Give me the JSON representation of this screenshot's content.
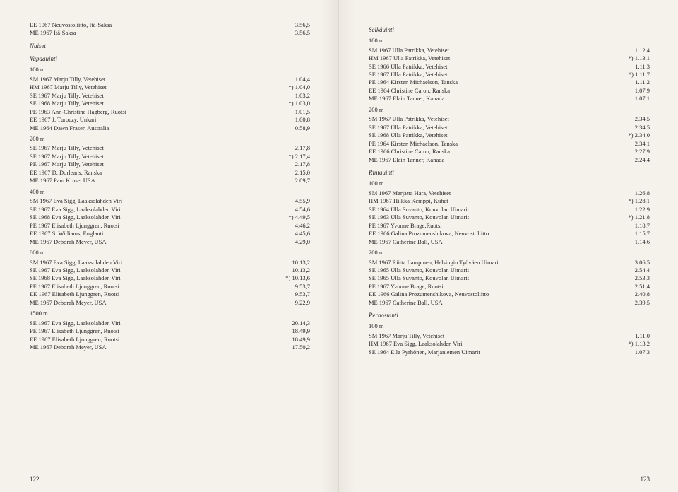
{
  "left": {
    "pagenum": "122",
    "blocks": [
      {
        "type": "rows",
        "rows": [
          [
            "EE 1967 Neuvostoliitto, Itä-Saksa",
            "3.56,5"
          ],
          [
            "ME 1967 Itä-Saksa",
            "3,56,5"
          ]
        ]
      },
      {
        "type": "section",
        "text": "Naiset"
      },
      {
        "type": "section",
        "text": "Vapaauinti"
      },
      {
        "type": "distance",
        "text": "100 m"
      },
      {
        "type": "rows",
        "rows": [
          [
            "SM 1967 Marju Tilly, Vetehiset",
            "1.04,4"
          ],
          [
            "HM 1967 Marju Tilly, Vetehiset",
            "*) 1.04,0"
          ],
          [
            "SE 1967 Marju Tilly, Vetehiset",
            "1.03,2"
          ],
          [
            "SE 1968 Marju Tilly, Vetehiset",
            "*) 1.03,0"
          ],
          [
            "PE 1963 Ann-Christine Hagberg, Ruotsi",
            "1.01,5"
          ],
          [
            "EE 1967 J. Turoczy, Unkari",
            "1.00,8"
          ],
          [
            "ME 1964 Dawn Fraser, Australia",
            "0.58,9"
          ]
        ]
      },
      {
        "type": "distance",
        "text": "200 m"
      },
      {
        "type": "rows",
        "rows": [
          [
            "SE 1967 Marju Tilly, Vetehiset",
            "2.17,8"
          ],
          [
            "SE 1967 Marju Tilly, Vetehiset",
            "*) 2.17,4"
          ],
          [
            "PE 1967 Marju Tilly, Vetehiset",
            "2.17,8"
          ],
          [
            "EE 1967 D. Dorleans, Ranska",
            "2.15,0"
          ],
          [
            "ME 1967 Pam Kruse, USA",
            "2.09,7"
          ]
        ]
      },
      {
        "type": "distance",
        "text": "400 m"
      },
      {
        "type": "rows",
        "rows": [
          [
            "SM 1967 Eva Sigg, Laaksolahden Viri",
            "4.55,9"
          ],
          [
            "SE 1967 Eva Sigg, Laaksolahden Viri",
            "4.54,6"
          ],
          [
            "SE 1968 Eva Sigg, Laaksolahden Viri",
            "*) 4.49,5"
          ],
          [
            "PE 1967 Elisabeth Ljunggren, Ruotsi",
            "4.46,2"
          ],
          [
            "EE 1967 S. Williams, Englanti",
            "4.45,6"
          ],
          [
            "ME 1967 Deborah Meyer, USA",
            "4.29,0"
          ]
        ]
      },
      {
        "type": "distance",
        "text": "800 m"
      },
      {
        "type": "rows",
        "rows": [
          [
            "SM 1967 Eva Sigg, Laaksolahden Viri",
            "10.13,2"
          ],
          [
            "SE 1967 Eva Sigg, Laaksolahden Viri",
            "10.13,2"
          ],
          [
            "SE 1968 Eva Sigg, Laaksolahden Viri",
            "*) 10.13,6"
          ],
          [
            "PE 1967 Elisabeth Ljunggren, Ruotsi",
            "9.53,7"
          ],
          [
            "EE 1967 Elisabeth Ljunggren, Ruotsi",
            "9.53,7"
          ],
          [
            "ME 1967 Deborah Meyer, USA",
            "9.22,9"
          ]
        ]
      },
      {
        "type": "distance",
        "text": "1500 m"
      },
      {
        "type": "rows",
        "rows": [
          [
            "SE 1967 Eva Sigg, Laaksolahden Viri",
            "20.14,3"
          ],
          [
            "PE 1967 Elisabeth Ljunggren, Ruotsi",
            "18.49,9"
          ],
          [
            "EE 1967 Elisabeth Ljunggren, Ruotsi",
            "18.49,9"
          ],
          [
            "ME 1967 Deborah Meyer, USA",
            "17.50,2"
          ]
        ]
      }
    ]
  },
  "right": {
    "pagenum": "123",
    "blocks": [
      {
        "type": "section",
        "text": "Selkäuinti"
      },
      {
        "type": "distance",
        "text": "100 m"
      },
      {
        "type": "rows",
        "rows": [
          [
            "SM 1967 Ulla Patrikka, Vetehiset",
            "1.12,4"
          ],
          [
            "HM 1967 Ulla Patrikka, Vetehiset",
            "*) 1.13,1"
          ],
          [
            "SE 1966 Ulla Patrikka, Vetehiset",
            "1.11,3"
          ],
          [
            "SE 1967 Ulla Patrikka, Vetehiset",
            "*) 1.11,7"
          ],
          [
            "PE 1964 Kirsten Michaelson, Tanska",
            "1.11,2"
          ],
          [
            "EE 1964 Christine Caron, Ranska",
            "1.07,9"
          ],
          [
            "ME 1967 Elain Tanner, Kanada",
            "1.07,1"
          ]
        ]
      },
      {
        "type": "distance",
        "text": "200 m"
      },
      {
        "type": "rows",
        "rows": [
          [
            "SM 1967 Ulla Patrikka, Vetehiset",
            "2.34,5"
          ],
          [
            "SE 1967 Ulla Patrikka, Vetehiset",
            "2.34,5"
          ],
          [
            "SE 1968 Ulla Patrikka, Vetehiset",
            "*) 2.34,0"
          ],
          [
            "PE 1964 Kirsten Michaelson, Tanska",
            "2.34,1"
          ],
          [
            "EE 1966 Christine Caron, Ranska",
            "2.27,9"
          ],
          [
            "ME 1967 Elain Tanner, Kanada",
            "2.24,4"
          ]
        ]
      },
      {
        "type": "section",
        "text": "Rintauinti"
      },
      {
        "type": "distance",
        "text": "100 m"
      },
      {
        "type": "rows",
        "rows": [
          [
            "SM 1967 Marjatta Hara, Vetehiset",
            "1.26,8"
          ],
          [
            "HM 1967 Hilkka Kemppi, Kuhat",
            "*) 1.28,1"
          ],
          [
            "SE 1964 Ulla Suvanto, Kouvolan Uimarit",
            "1.22,9"
          ],
          [
            "SE 1963 Ulla Suvanto, Kouvolan Uimarit",
            "*) 1.21,8"
          ],
          [
            "PE 1967 Yvonne Brage,Ruotsi",
            "1.18,7"
          ],
          [
            "EE 1966 Galina Prozumenshikova, Neuvostoliitto",
            "1.15,7"
          ],
          [
            "ME 1967 Catherine Ball, USA",
            "1.14,6"
          ]
        ]
      },
      {
        "type": "distance",
        "text": "200 m"
      },
      {
        "type": "rows",
        "rows": [
          [
            "SM 1967 Riitta Lampinen, Helsingin Työväen Uimarit",
            "3.06,5"
          ],
          [
            "SE 1965 Ulla Suvanto, Kouvolan Uimarit",
            "2.54,4"
          ],
          [
            "SE 1965 Ulla Suvanto, Kouvolan Uimarit",
            "2.53,3"
          ],
          [
            "PE 1967 Yvonne Brage, Ruotsi",
            "2.51,4"
          ],
          [
            "EE 1966 Galina Prozumenshikova, Neuvostoliitto",
            "2.40,8"
          ],
          [
            "ME 1967 Catherine Ball, USA",
            "2.39,5"
          ]
        ]
      },
      {
        "type": "section",
        "text": "Perhosuinti"
      },
      {
        "type": "distance",
        "text": "100 m"
      },
      {
        "type": "rows",
        "rows": [
          [
            "SM 1967 Marju Tilly, Vetehiset",
            "1.11,0"
          ],
          [
            "HM 1967 Eva Sigg, Laaksolahden Viri",
            "*) 1.13,2"
          ],
          [
            "SE 1964 Eila Pyrhönen, Marjaniemen Uimarit",
            "1.07,3"
          ]
        ]
      }
    ]
  }
}
